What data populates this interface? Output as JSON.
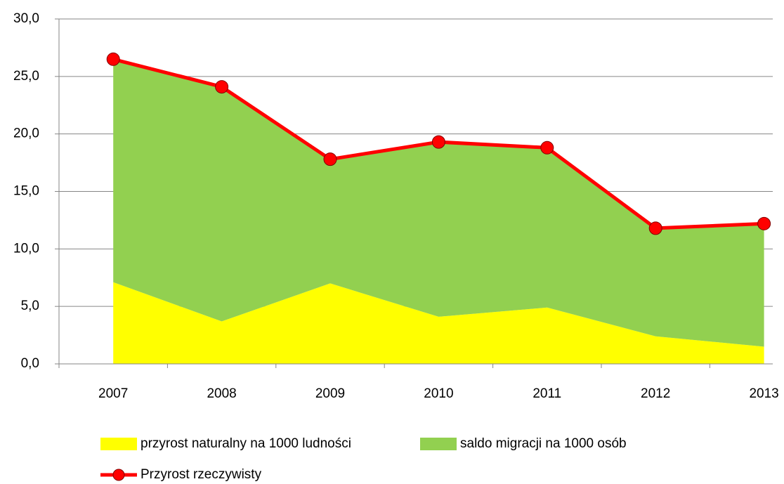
{
  "chart_data": {
    "type": "area",
    "categories": [
      "2007",
      "2008",
      "2009",
      "2010",
      "2011",
      "2012",
      "2013"
    ],
    "series": [
      {
        "name": "przyrost naturalny na 1000 ludności",
        "color": "#ffff00",
        "values": [
          7.1,
          3.7,
          7.0,
          4.1,
          4.9,
          2.4,
          1.5
        ]
      },
      {
        "name": "saldo migracji na 1000 osób",
        "color": "#92d050",
        "values": [
          19.4,
          20.4,
          10.8,
          15.2,
          13.9,
          9.4,
          10.7
        ]
      },
      {
        "name": "Przyrost rzeczywisty",
        "color": "#ff0000",
        "type": "line",
        "values": [
          26.5,
          24.1,
          17.8,
          19.3,
          18.8,
          11.8,
          12.2
        ]
      }
    ],
    "ylim": [
      0,
      30
    ],
    "yticks": [
      {
        "value": 0,
        "label": "0,0"
      },
      {
        "value": 5,
        "label": "5,0"
      },
      {
        "value": 10,
        "label": "10,0"
      },
      {
        "value": 15,
        "label": "15,0"
      },
      {
        "value": 20,
        "label": "20,0"
      },
      {
        "value": 25,
        "label": "25,0"
      },
      {
        "value": 30,
        "label": "30,0"
      }
    ],
    "grid": true
  }
}
